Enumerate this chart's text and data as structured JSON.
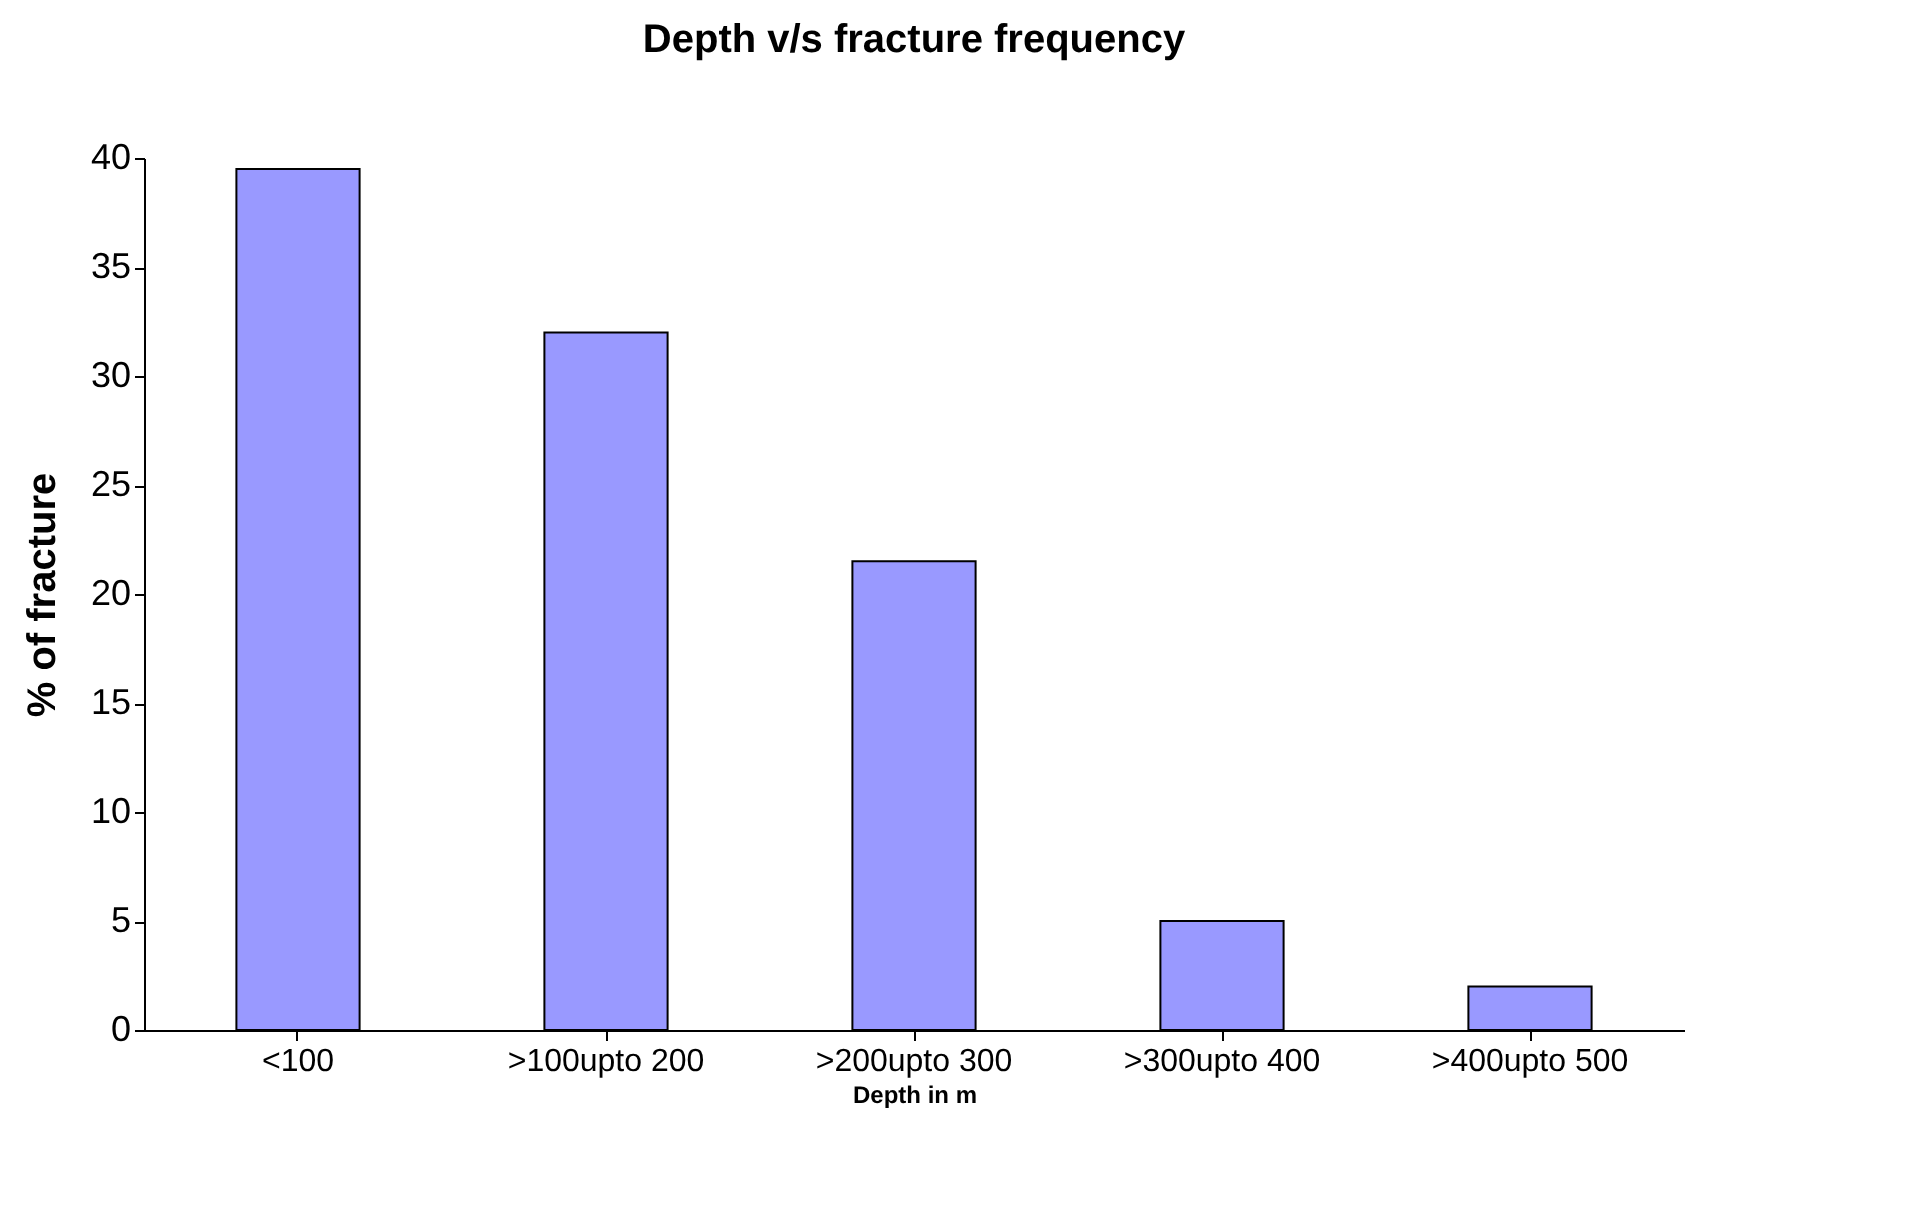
{
  "chart_data": {
    "type": "bar",
    "title": "Depth v/s fracture frequency",
    "xlabel": "Depth in m",
    "ylabel": "% of fracture",
    "categories": [
      "<100",
      ">100upto 200",
      ">200upto 300",
      ">300upto 400",
      ">400upto 500"
    ],
    "values": [
      39.5,
      32,
      21.5,
      5,
      2
    ],
    "color": "#9999ff",
    "ylim": [
      0,
      40
    ],
    "yticks": [
      0,
      5,
      10,
      15,
      20,
      25,
      30,
      35,
      40
    ],
    "grid": false
  }
}
